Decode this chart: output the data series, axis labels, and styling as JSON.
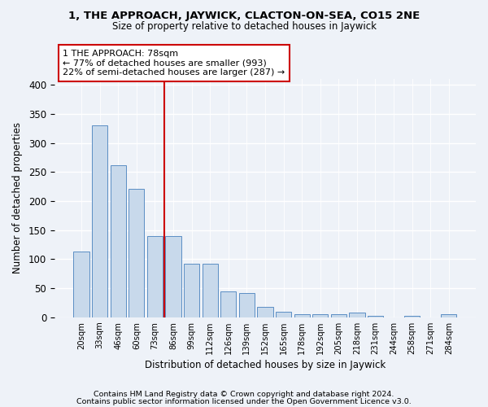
{
  "title1": "1, THE APPROACH, JAYWICK, CLACTON-ON-SEA, CO15 2NE",
  "title2": "Size of property relative to detached houses in Jaywick",
  "xlabel": "Distribution of detached houses by size in Jaywick",
  "ylabel": "Number of detached properties",
  "categories": [
    "20sqm",
    "33sqm",
    "46sqm",
    "60sqm",
    "73sqm",
    "86sqm",
    "99sqm",
    "112sqm",
    "126sqm",
    "139sqm",
    "152sqm",
    "165sqm",
    "178sqm",
    "192sqm",
    "205sqm",
    "218sqm",
    "231sqm",
    "244sqm",
    "258sqm",
    "271sqm",
    "284sqm"
  ],
  "values": [
    113,
    330,
    262,
    221,
    140,
    140,
    92,
    92,
    44,
    42,
    18,
    9,
    6,
    5,
    6,
    8,
    2,
    0,
    3,
    0,
    5
  ],
  "bar_color": "#c8d9eb",
  "bar_edge_color": "#5b8ec4",
  "vline_x": 4.5,
  "vline_color": "#cc0000",
  "annotation_text": "1 THE APPROACH: 78sqm\n← 77% of detached houses are smaller (993)\n22% of semi-detached houses are larger (287) →",
  "annotation_box_color": "#ffffff",
  "annotation_box_edge": "#cc0000",
  "ylim": [
    0,
    410
  ],
  "yticks": [
    0,
    50,
    100,
    150,
    200,
    250,
    300,
    350,
    400
  ],
  "footer1": "Contains HM Land Registry data © Crown copyright and database right 2024.",
  "footer2": "Contains public sector information licensed under the Open Government Licence v3.0.",
  "background_color": "#eef2f8"
}
